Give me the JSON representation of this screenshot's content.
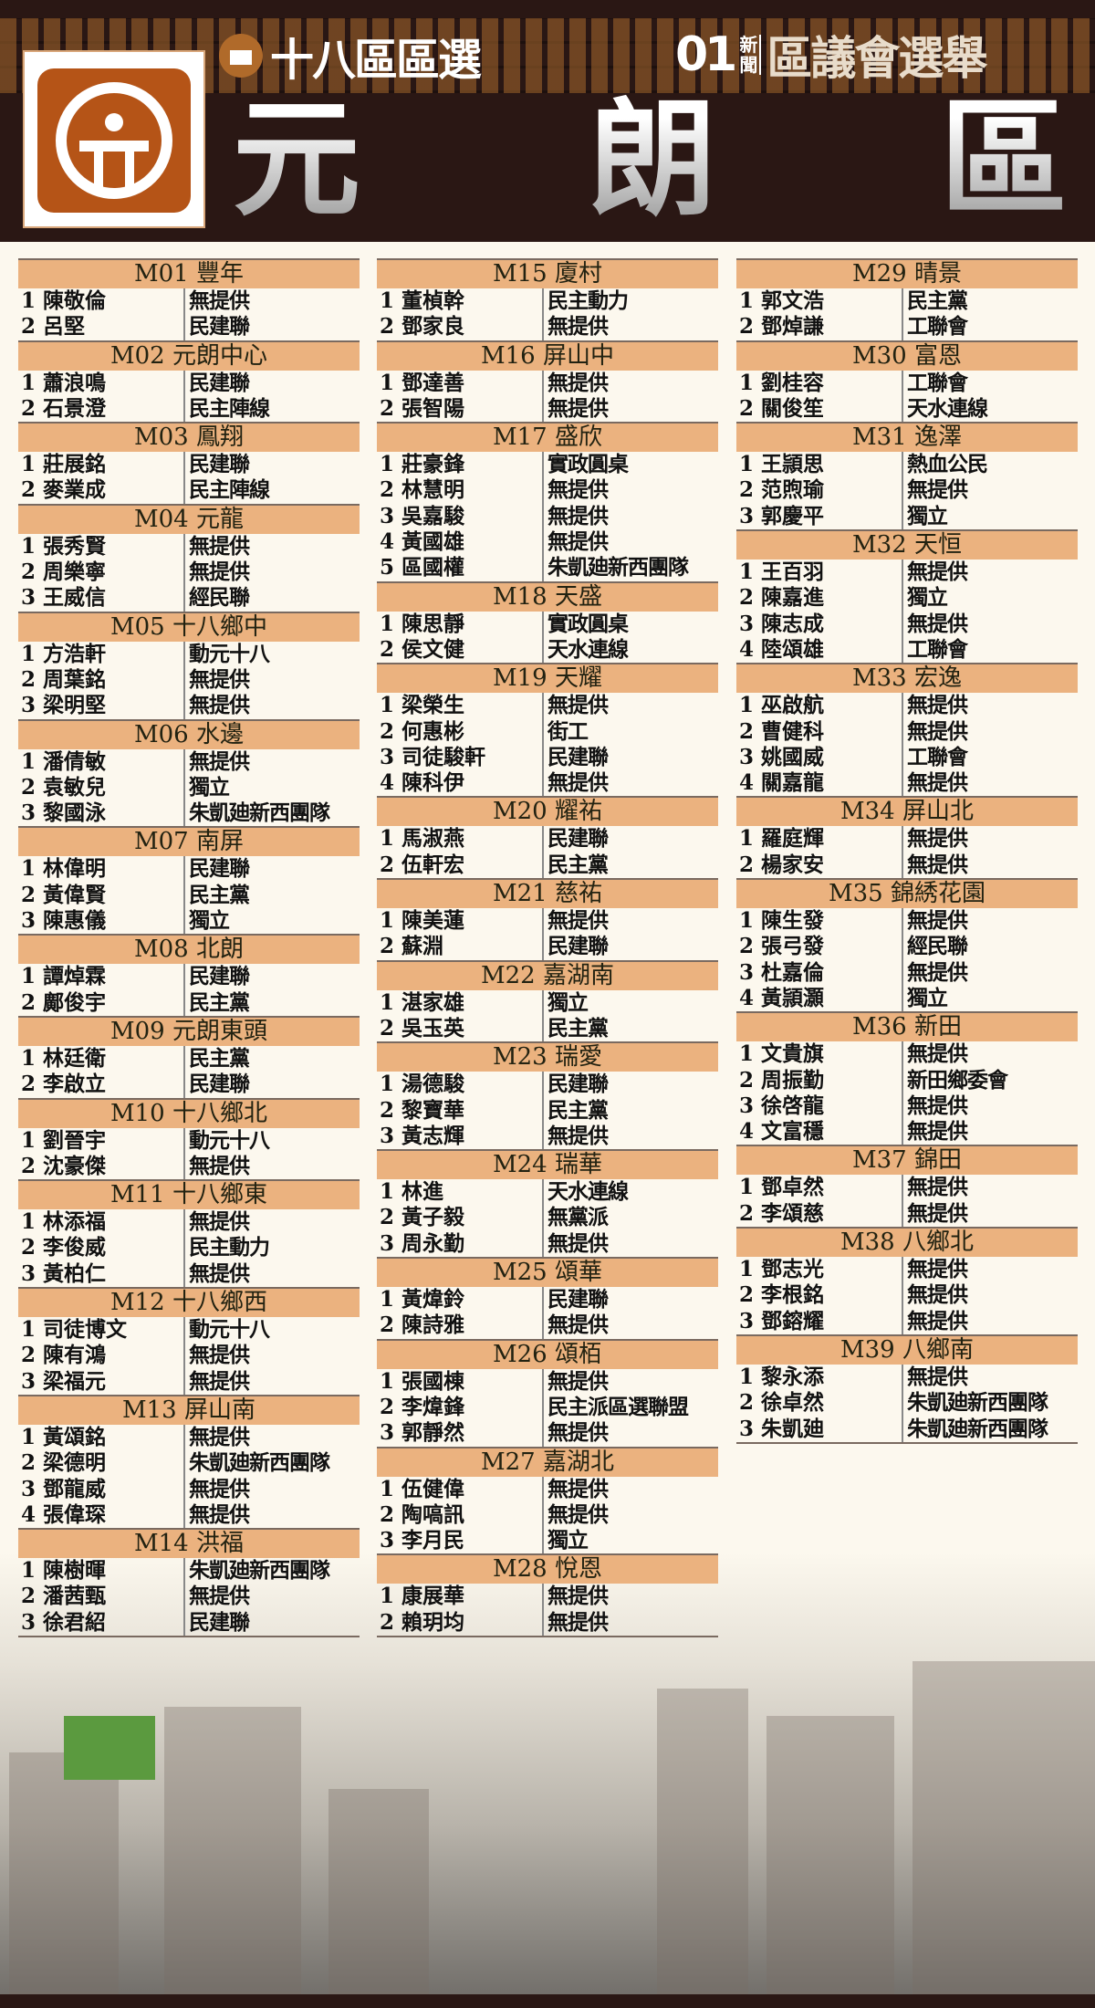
{
  "header": {
    "brand_left": "十八區區選",
    "brand_right_logo": "01",
    "brand_right_news": "新聞",
    "brand_right": "區議會選舉",
    "title": [
      "元",
      "朗",
      "區"
    ],
    "logo_icon": "yuen-long-district-emblem",
    "ballot_icon": "ballot-box-icon"
  },
  "colors": {
    "header_bg": "#2a1714",
    "section_header": "#ebb27f",
    "page_bg": "#fcf8ee",
    "logo_orange": "#b55417"
  },
  "columns": [
    [
      {
        "title": "M01 豐年",
        "candidates": [
          [
            "1 陳敬倫",
            "無提供"
          ],
          [
            "2 呂堅",
            "民建聯"
          ]
        ]
      },
      {
        "title": "M02 元朗中心",
        "candidates": [
          [
            "1 蕭浪鳴",
            "民建聯"
          ],
          [
            "2 石景澄",
            "民主陣線"
          ]
        ]
      },
      {
        "title": "M03 鳳翔",
        "candidates": [
          [
            "1 莊展銘",
            "民建聯"
          ],
          [
            "2 麥業成",
            "民主陣線"
          ]
        ]
      },
      {
        "title": "M04 元龍",
        "candidates": [
          [
            "1 張秀賢",
            "無提供"
          ],
          [
            "2 周樂寧",
            "無提供"
          ],
          [
            "3 王威信",
            "經民聯"
          ]
        ]
      },
      {
        "title": "M05 十八鄉中",
        "candidates": [
          [
            "1 方浩軒",
            "動元十八"
          ],
          [
            "2 周葉銘",
            "無提供"
          ],
          [
            "3 梁明堅",
            "無提供"
          ]
        ]
      },
      {
        "title": "M06 水邊",
        "candidates": [
          [
            "1 潘倩敏",
            "無提供"
          ],
          [
            "2 袁敏兒",
            "獨立"
          ],
          [
            "3 黎國泳",
            "朱凱廸新西團隊"
          ]
        ]
      },
      {
        "title": "M07 南屏",
        "candidates": [
          [
            "1 林偉明",
            "民建聯"
          ],
          [
            "2 黃偉賢",
            "民主黨"
          ],
          [
            "3 陳惠儀",
            "獨立"
          ]
        ]
      },
      {
        "title": "M08 北朗",
        "candidates": [
          [
            "1 譚焯霖",
            "民建聯"
          ],
          [
            "2 鄺俊宇",
            "民主黨"
          ]
        ]
      },
      {
        "title": "M09 元朗東頭",
        "candidates": [
          [
            "1 林廷衛",
            "民主黨"
          ],
          [
            "2 李啟立",
            "民建聯"
          ]
        ]
      },
      {
        "title": "M10 十八鄉北",
        "candidates": [
          [
            "1 劉晉宇",
            "動元十八"
          ],
          [
            "2 沈豪傑",
            "無提供"
          ]
        ]
      },
      {
        "title": "M11 十八鄉東",
        "candidates": [
          [
            "1 林添福",
            "無提供"
          ],
          [
            "2 李俊威",
            "民主動力"
          ],
          [
            "3 黃柏仁",
            "無提供"
          ]
        ]
      },
      {
        "title": "M12 十八鄉西",
        "candidates": [
          [
            "1 司徒博文",
            "動元十八"
          ],
          [
            "2 陳有鴻",
            "無提供"
          ],
          [
            "3 梁福元",
            "無提供"
          ]
        ]
      },
      {
        "title": "M13 屏山南",
        "candidates": [
          [
            "1 黃頌銘",
            "無提供"
          ],
          [
            "2 梁德明",
            "朱凱廸新西團隊"
          ],
          [
            "3 鄧龍威",
            "無提供"
          ],
          [
            "4 張偉琛",
            "無提供"
          ]
        ]
      },
      {
        "title": "M14 洪福",
        "candidates": [
          [
            "1 陳樹暉",
            "朱凱廸新西團隊"
          ],
          [
            "2 潘茜甄",
            "無提供"
          ],
          [
            "3 徐君紹",
            "民建聯"
          ]
        ]
      }
    ],
    [
      {
        "title": "M15 廈村",
        "candidates": [
          [
            "1 董楨幹",
            "民主動力"
          ],
          [
            "2 鄧家良",
            "無提供"
          ]
        ]
      },
      {
        "title": "M16 屏山中",
        "candidates": [
          [
            "1 鄧達善",
            "無提供"
          ],
          [
            "2 張智陽",
            "無提供"
          ]
        ]
      },
      {
        "title": "M17 盛欣",
        "candidates": [
          [
            "1 莊豪鋒",
            "實政圓桌"
          ],
          [
            "2 林慧明",
            "無提供"
          ],
          [
            "3 吳嘉駿",
            "無提供"
          ],
          [
            "4 黃國雄",
            "無提供"
          ],
          [
            "5 區國權",
            "朱凱廸新西團隊"
          ]
        ]
      },
      {
        "title": "M18 天盛",
        "candidates": [
          [
            "1 陳思靜",
            "實政圓桌"
          ],
          [
            "2 侯文健",
            "天水連線"
          ]
        ]
      },
      {
        "title": "M19 天耀",
        "candidates": [
          [
            "1 梁榮生",
            "無提供"
          ],
          [
            "2 何惠彬",
            "街工"
          ],
          [
            "3 司徒駿軒",
            "民建聯"
          ],
          [
            "4 陳科伊",
            "無提供"
          ]
        ]
      },
      {
        "title": "M20 耀祐",
        "candidates": [
          [
            "1 馬淑燕",
            "民建聯"
          ],
          [
            "2 伍軒宏",
            "民主黨"
          ]
        ]
      },
      {
        "title": "M21 慈祐",
        "candidates": [
          [
            "1 陳美蓮",
            "無提供"
          ],
          [
            "2 蘇淵",
            "民建聯"
          ]
        ]
      },
      {
        "title": "M22 嘉湖南",
        "candidates": [
          [
            "1 湛家雄",
            "獨立"
          ],
          [
            "2 吳玉英",
            "民主黨"
          ]
        ]
      },
      {
        "title": "M23 瑞愛",
        "candidates": [
          [
            "1 湯德駿",
            "民建聯"
          ],
          [
            "2 黎寶華",
            "民主黨"
          ],
          [
            "3 黃志輝",
            "無提供"
          ]
        ]
      },
      {
        "title": "M24 瑞華",
        "candidates": [
          [
            "1 林進",
            "天水連線"
          ],
          [
            "2 黃子毅",
            "無黨派"
          ],
          [
            "3 周永勤",
            "無提供"
          ]
        ]
      },
      {
        "title": "M25 頌華",
        "candidates": [
          [
            "1 黃煒鈴",
            "民建聯"
          ],
          [
            "2 陳詩雅",
            "無提供"
          ]
        ]
      },
      {
        "title": "M26 頌栢",
        "candidates": [
          [
            "1 張國棟",
            "無提供"
          ],
          [
            "2 李煒鋒",
            "民主派區選聯盟"
          ],
          [
            "3 郭靜然",
            "無提供"
          ]
        ]
      },
      {
        "title": "M27 嘉湖北",
        "candidates": [
          [
            "1 伍健偉",
            "無提供"
          ],
          [
            "2 陶嗃訊",
            "無提供"
          ],
          [
            "3 李月民",
            "獨立"
          ]
        ]
      },
      {
        "title": "M28 悅恩",
        "candidates": [
          [
            "1 康展華",
            "無提供"
          ],
          [
            "2 賴玥均",
            "無提供"
          ]
        ]
      }
    ],
    [
      {
        "title": "M29 晴景",
        "candidates": [
          [
            "1 郭文浩",
            "民主黨"
          ],
          [
            "2 鄧焯謙",
            "工聯會"
          ]
        ]
      },
      {
        "title": "M30 富恩",
        "candidates": [
          [
            "1 劉桂容",
            "工聯會"
          ],
          [
            "2 關俊笙",
            "天水連線"
          ]
        ]
      },
      {
        "title": "M31 逸澤",
        "candidates": [
          [
            "1 王頴思",
            "熱血公民"
          ],
          [
            "2 范煦瑜",
            "無提供"
          ],
          [
            "3 郭慶平",
            "獨立"
          ]
        ]
      },
      {
        "title": "M32 天恒",
        "candidates": [
          [
            "1 王百羽",
            "無提供"
          ],
          [
            "2 陳嘉進",
            "獨立"
          ],
          [
            "3 陳志成",
            "無提供"
          ],
          [
            "4 陸頌雄",
            "工聯會"
          ]
        ]
      },
      {
        "title": "M33 宏逸",
        "candidates": [
          [
            "1 巫啟航",
            "無提供"
          ],
          [
            "2 曹健科",
            "無提供"
          ],
          [
            "3 姚國威",
            "工聯會"
          ],
          [
            "4 關嘉龍",
            "無提供"
          ]
        ]
      },
      {
        "title": "M34 屏山北",
        "candidates": [
          [
            "1 羅庭輝",
            "無提供"
          ],
          [
            "2 楊家安",
            "無提供"
          ]
        ]
      },
      {
        "title": "M35 錦綉花園",
        "candidates": [
          [
            "1 陳生發",
            "無提供"
          ],
          [
            "2 張弓發",
            "經民聯"
          ],
          [
            "3 杜嘉倫",
            "無提供"
          ],
          [
            "4 黃頴灝",
            "獨立"
          ]
        ]
      },
      {
        "title": "M36 新田",
        "candidates": [
          [
            "1 文貴旗",
            "無提供"
          ],
          [
            "2 周振勤",
            "新田鄉委會"
          ],
          [
            "3 徐啓龍",
            "無提供"
          ],
          [
            "4 文富穩",
            "無提供"
          ]
        ]
      },
      {
        "title": "M37 錦田",
        "candidates": [
          [
            "1 鄧卓然",
            "無提供"
          ],
          [
            "2 李頌慈",
            "無提供"
          ]
        ]
      },
      {
        "title": "M38 八鄉北",
        "candidates": [
          [
            "1 鄧志光",
            "無提供"
          ],
          [
            "2 李根銘",
            "無提供"
          ],
          [
            "3 鄧鎔耀",
            "無提供"
          ]
        ]
      },
      {
        "title": "M39 八鄉南",
        "candidates": [
          [
            "1 黎永添",
            "無提供"
          ],
          [
            "2 徐卓然",
            "朱凱廸新西團隊"
          ],
          [
            "3 朱凱廸",
            "朱凱廸新西團隊"
          ]
        ]
      }
    ]
  ]
}
